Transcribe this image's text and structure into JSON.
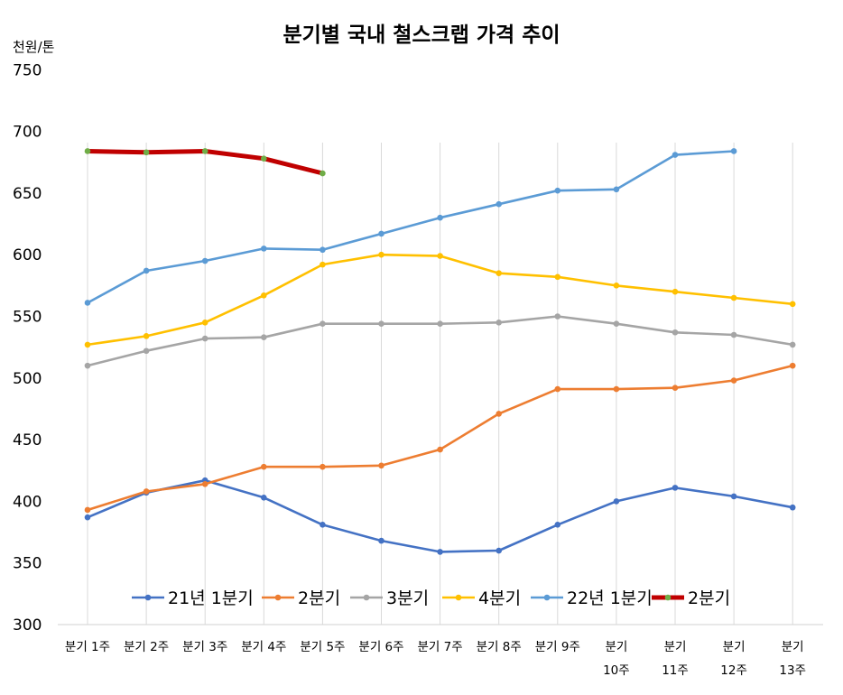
{
  "chart_data": {
    "type": "line",
    "title": "분기별 국내 철스크랩 가격 추이",
    "unit_label": "천원/톤",
    "ylim": [
      300,
      750
    ],
    "yticks": [
      300,
      350,
      400,
      450,
      500,
      550,
      600,
      650,
      700,
      750
    ],
    "grid": "vertical",
    "legend_position": "bottom-inside",
    "categories": [
      {
        "line1": "분기 1주",
        "line2": ""
      },
      {
        "line1": "분기 2주",
        "line2": ""
      },
      {
        "line1": "분기 3주",
        "line2": ""
      },
      {
        "line1": "분기 4주",
        "line2": ""
      },
      {
        "line1": "분기 5주",
        "line2": ""
      },
      {
        "line1": "분기 6주",
        "line2": ""
      },
      {
        "line1": "분기 7주",
        "line2": ""
      },
      {
        "line1": "분기 8주",
        "line2": ""
      },
      {
        "line1": "분기 9주",
        "line2": ""
      },
      {
        "line1": "분기",
        "line2": "10주"
      },
      {
        "line1": "분기",
        "line2": "11주"
      },
      {
        "line1": "분기",
        "line2": "12주"
      },
      {
        "line1": "분기",
        "line2": "13주"
      }
    ],
    "series": [
      {
        "name": "21년 1분기",
        "color": "#4472C4",
        "marker_color": "#4472C4",
        "values": [
          387,
          407,
          417,
          403,
          381,
          368,
          359,
          360,
          381,
          400,
          411,
          404,
          395
        ]
      },
      {
        "name": "2분기",
        "color": "#ED7D31",
        "marker_color": "#ED7D31",
        "values": [
          393,
          408,
          414,
          428,
          428,
          429,
          442,
          471,
          491,
          491,
          492,
          498,
          510
        ]
      },
      {
        "name": "3분기",
        "color": "#A5A5A5",
        "marker_color": "#A5A5A5",
        "values": [
          510,
          522,
          532,
          533,
          544,
          544,
          544,
          545,
          550,
          544,
          537,
          535,
          527
        ]
      },
      {
        "name": "4분기",
        "color": "#FFC000",
        "marker_color": "#FFC000",
        "values": [
          527,
          534,
          545,
          567,
          592,
          600,
          599,
          585,
          582,
          575,
          570,
          565,
          560
        ]
      },
      {
        "name": "22년 1분기",
        "color": "#5B9BD5",
        "marker_color": "#5B9BD5",
        "values": [
          561,
          587,
          595,
          605,
          604,
          617,
          630,
          641,
          652,
          653,
          681,
          684,
          null
        ]
      },
      {
        "name": "2분기",
        "color": "#C00000",
        "marker_color": "#70AD47",
        "thick": true,
        "values": [
          684,
          683,
          684,
          678,
          666,
          null,
          null,
          null,
          null,
          null,
          null,
          null,
          null
        ]
      }
    ]
  }
}
